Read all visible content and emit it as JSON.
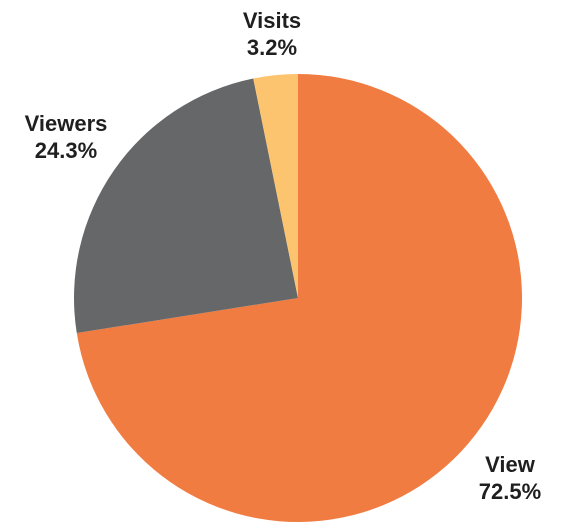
{
  "chart_data": {
    "type": "pie",
    "slices": [
      {
        "name": "View",
        "value": 72.5,
        "label": "72.5%",
        "color": "#F07C41"
      },
      {
        "name": "Viewers",
        "value": 24.3,
        "label": "24.3%",
        "color": "#666769"
      },
      {
        "name": "Visits",
        "value": 3.2,
        "label": "3.2%",
        "color": "#FDC470"
      }
    ],
    "start_angle": "12 o'clock",
    "direction": "clockwise",
    "legend": "none",
    "label_placement": "outside"
  }
}
